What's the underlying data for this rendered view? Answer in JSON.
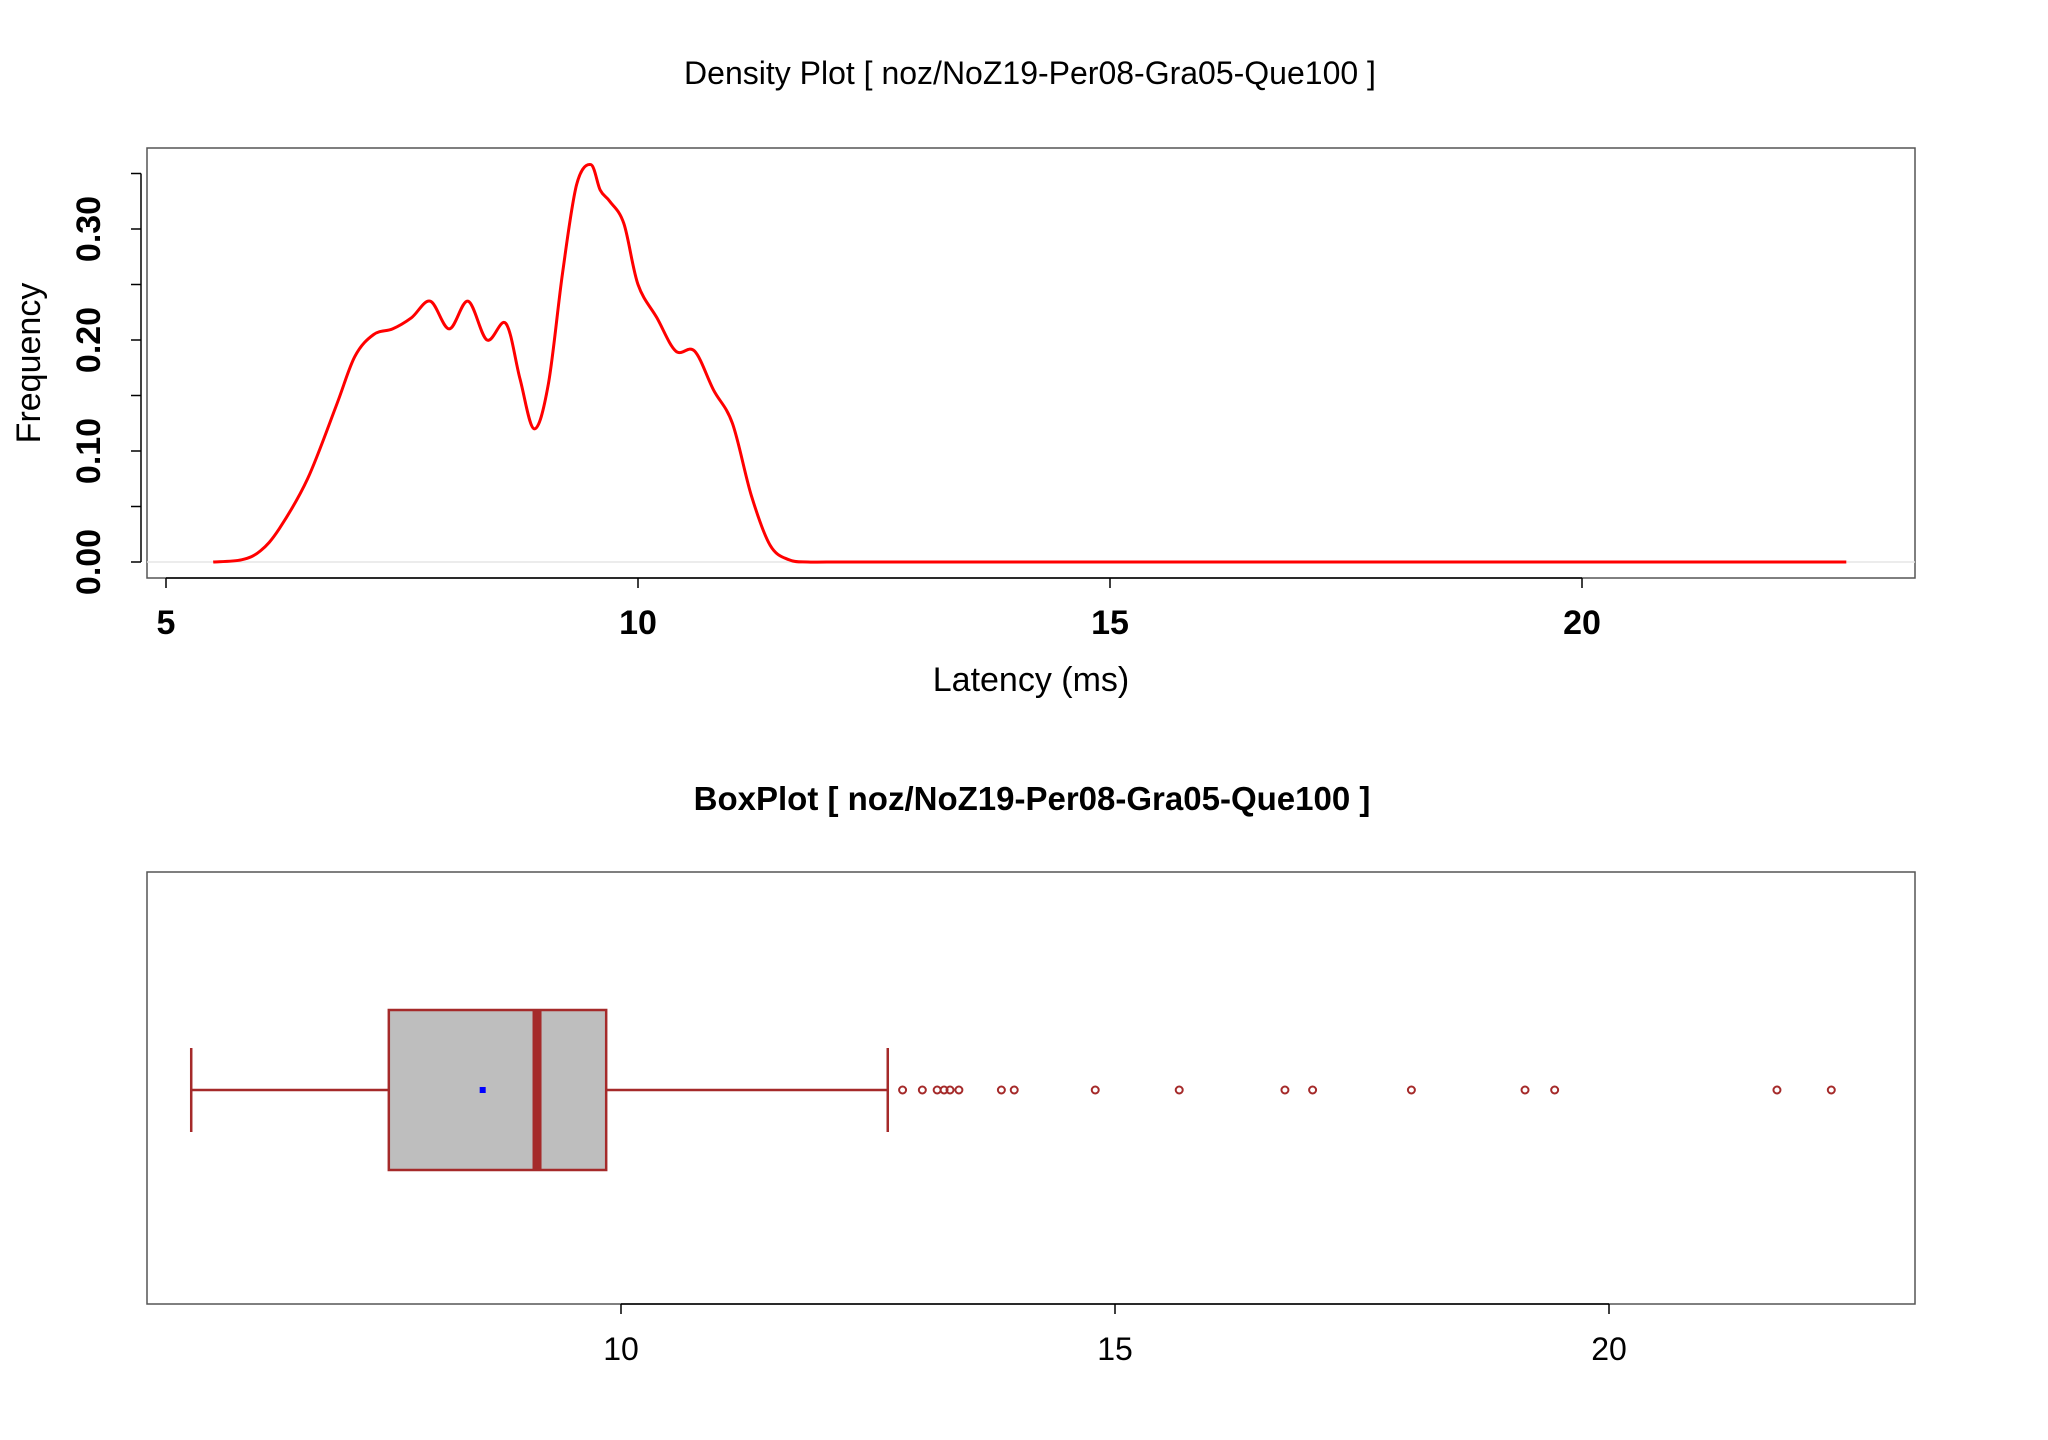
{
  "chart_data": [
    {
      "type": "line",
      "title": "Density Plot [ noz/NoZ19-Per08-Gra05-Que100 ]",
      "xlabel": "Latency (ms)",
      "ylabel": "Frequency",
      "xlim": [
        5,
        23
      ],
      "ylim": [
        0,
        0.36
      ],
      "xticks": [
        "5",
        "10",
        "15",
        "20"
      ],
      "yticks": [
        "0.00",
        "0.10",
        "0.20",
        "0.30"
      ],
      "line_color": "#ff0000",
      "series": [
        {
          "x": [
            5.5,
            5.8,
            6.0,
            6.2,
            6.5,
            6.8,
            7.0,
            7.2,
            7.4,
            7.6,
            7.8,
            8.0,
            8.2,
            8.4,
            8.6,
            8.75,
            8.9,
            9.05,
            9.2,
            9.35,
            9.5,
            9.6,
            9.7,
            9.85,
            10.0,
            10.2,
            10.4,
            10.6,
            10.8,
            11.0,
            11.2,
            11.4,
            11.6,
            11.8,
            12.0,
            12.5,
            14.0,
            16.0,
            18.0,
            20.0,
            22.8
          ],
          "y": [
            0.0,
            0.002,
            0.01,
            0.03,
            0.075,
            0.14,
            0.185,
            0.205,
            0.21,
            0.22,
            0.235,
            0.21,
            0.235,
            0.2,
            0.215,
            0.165,
            0.12,
            0.16,
            0.26,
            0.34,
            0.358,
            0.335,
            0.325,
            0.305,
            0.25,
            0.22,
            0.19,
            0.19,
            0.155,
            0.125,
            0.06,
            0.015,
            0.002,
            0.0,
            0.0,
            0.0,
            0.0,
            0.0,
            0.0,
            0.0,
            0.0
          ]
        }
      ]
    },
    {
      "type": "box",
      "title": "BoxPlot [ noz/NoZ19-Per08-Gra05-Que100 ]",
      "xlim": [
        5.5,
        23
      ],
      "xticks": [
        "10",
        "15",
        "20"
      ],
      "whisker_low": 5.65,
      "q1": 7.65,
      "median": 9.15,
      "mean": 8.6,
      "q3": 9.85,
      "whisker_high": 12.7,
      "outliers": [
        12.85,
        13.05,
        13.2,
        13.27,
        13.33,
        13.42,
        13.85,
        13.98,
        14.8,
        15.65,
        16.72,
        17.0,
        18.0,
        19.15,
        19.45,
        21.7,
        22.25
      ],
      "box_color": "#bebebe",
      "border_color": "#a52a2a",
      "mean_color": "#0000ff"
    }
  ]
}
